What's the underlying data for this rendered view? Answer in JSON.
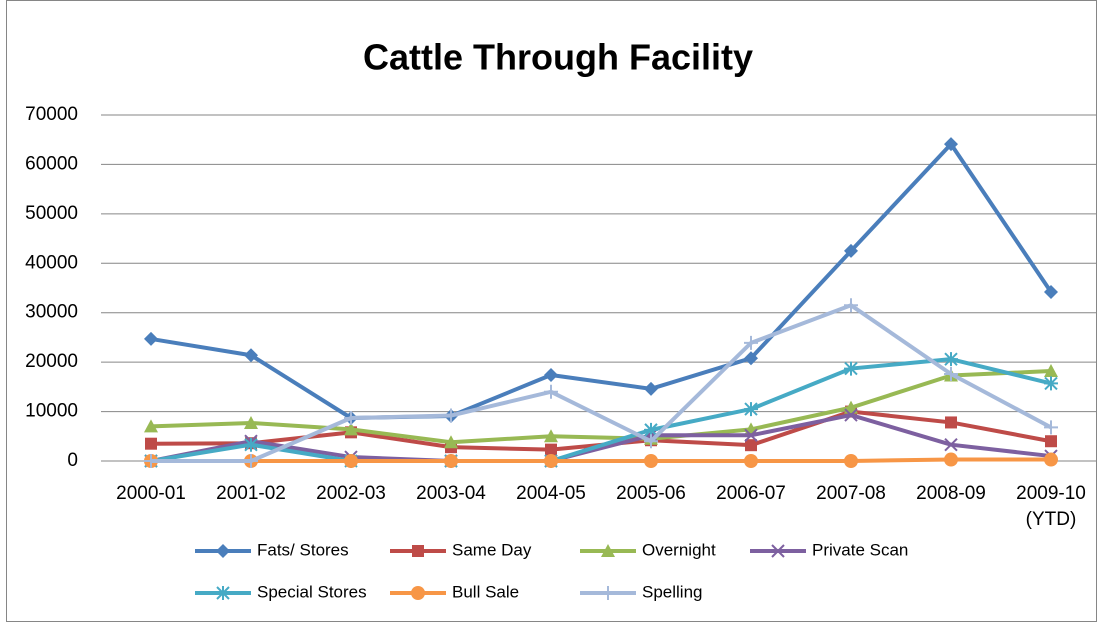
{
  "chart_data": {
    "type": "line",
    "title": "Cattle Through Facility",
    "categories": [
      "2000-01",
      "2001-02",
      "2002-03",
      "2003-04",
      "2004-05",
      "2005-06",
      "2006-07",
      "2007-08",
      "2008-09",
      "2009-10 (YTD)"
    ],
    "ylim": [
      0,
      70000
    ],
    "yticks": [
      0,
      10000,
      20000,
      30000,
      40000,
      50000,
      60000,
      70000
    ],
    "grid": true,
    "legend": "bottom",
    "series": [
      {
        "name": "Fats/ Stores",
        "color": "#4a7ebb",
        "marker": "diamond",
        "values": [
          24700,
          21400,
          8700,
          9100,
          17400,
          14600,
          20800,
          42500,
          64100,
          34200
        ]
      },
      {
        "name": "Same Day",
        "color": "#be4b48",
        "marker": "square",
        "values": [
          3500,
          3600,
          5800,
          2800,
          2300,
          4200,
          3200,
          10000,
          7800,
          4000
        ]
      },
      {
        "name": "Overnight",
        "color": "#98b954",
        "marker": "triangle",
        "values": [
          7000,
          7700,
          6400,
          3800,
          5000,
          4500,
          6400,
          10800,
          17300,
          18200
        ]
      },
      {
        "name": "Private Scan",
        "color": "#7d60a0",
        "marker": "x",
        "values": [
          0,
          4000,
          800,
          0,
          0,
          5200,
          5200,
          9300,
          3300,
          1000
        ]
      },
      {
        "name": "Special Stores",
        "color": "#46aac5",
        "marker": "star",
        "values": [
          0,
          3300,
          0,
          0,
          0,
          6300,
          10500,
          18700,
          20600,
          15700
        ]
      },
      {
        "name": "Bull Sale",
        "color": "#f79646",
        "marker": "circle",
        "values": [
          0,
          0,
          0,
          0,
          0,
          0,
          0,
          0,
          300,
          300
        ]
      },
      {
        "name": "Spelling",
        "color": "#a5b9da",
        "marker": "plus",
        "values": [
          0,
          0,
          8700,
          9200,
          14000,
          4000,
          23900,
          31500,
          17600,
          6800
        ]
      }
    ]
  }
}
